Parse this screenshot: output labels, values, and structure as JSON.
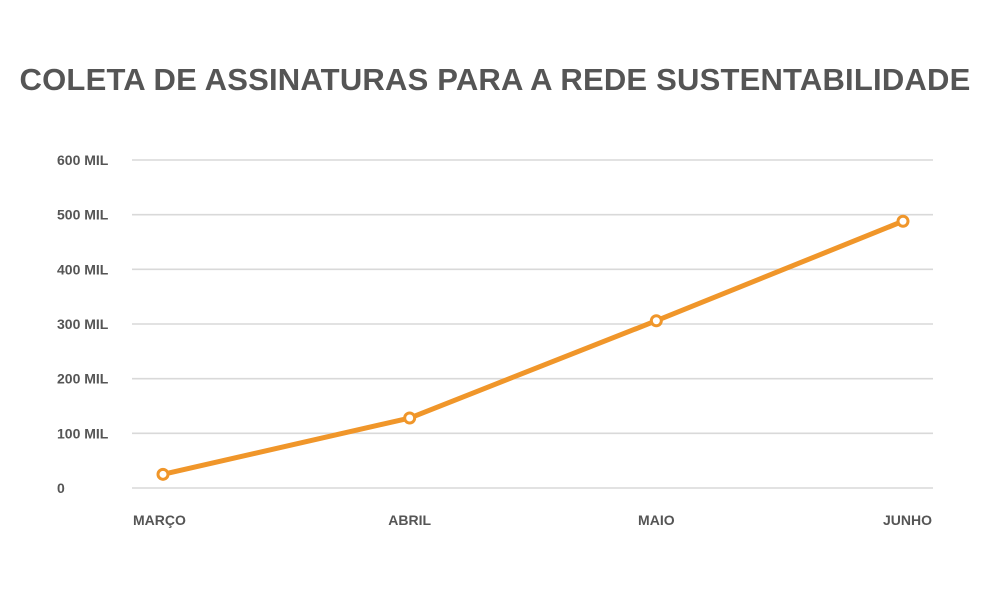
{
  "chart_data": {
    "type": "line",
    "title": "COLETA DE ASSINATURAS PARA A REDE SUSTENTABILIDADE",
    "xlabel": "",
    "ylabel": "",
    "categories": [
      "MARÇO",
      "ABRIL",
      "MAIO",
      "JUNHO"
    ],
    "series": [
      {
        "values": [
          25000,
          128000,
          306000,
          488000
        ]
      }
    ],
    "ylim": [
      0,
      600000
    ],
    "yticks": [
      0,
      100000,
      200000,
      300000,
      400000,
      500000,
      600000
    ],
    "ytick_labels": [
      "0",
      "100 MIL",
      "200 MIL",
      "300 MIL",
      "400 MIL",
      "500 MIL",
      "600 MIL"
    ],
    "grid": true,
    "legend": "none",
    "colors": {
      "line": "#f0962a",
      "grid": "#d9d9d9",
      "text": "#555555"
    }
  }
}
